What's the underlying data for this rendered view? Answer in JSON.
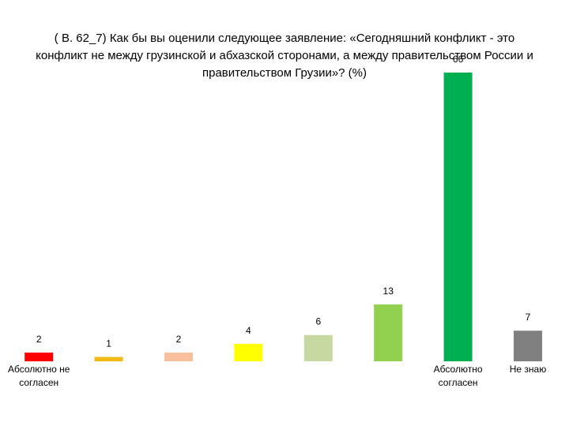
{
  "chart_data": {
    "type": "bar",
    "title": "( В. 62_7)  Как бы вы оценили следующее заявление: «Сегодняшний конфликт - это конфликт не между грузинской и абхазской сторонами, а между правительством России и правительством Грузии»? (%)",
    "categories": [
      [
        "Абсолютно не",
        "согласен"
      ],
      [
        ""
      ],
      [
        ""
      ],
      [
        ""
      ],
      [
        ""
      ],
      [
        ""
      ],
      [
        "Абсолютно",
        "согласен"
      ],
      [
        "Не знаю"
      ]
    ],
    "values": [
      2,
      1,
      2,
      4,
      6,
      13,
      66,
      7
    ],
    "colors": [
      "#ff0000",
      "#f2b918",
      "#f7c09a",
      "#ffff00",
      "#c6d9a0",
      "#92d050",
      "#00b050",
      "#808080"
    ],
    "ylim": [
      0,
      70
    ],
    "grid": false,
    "legend": "none"
  }
}
